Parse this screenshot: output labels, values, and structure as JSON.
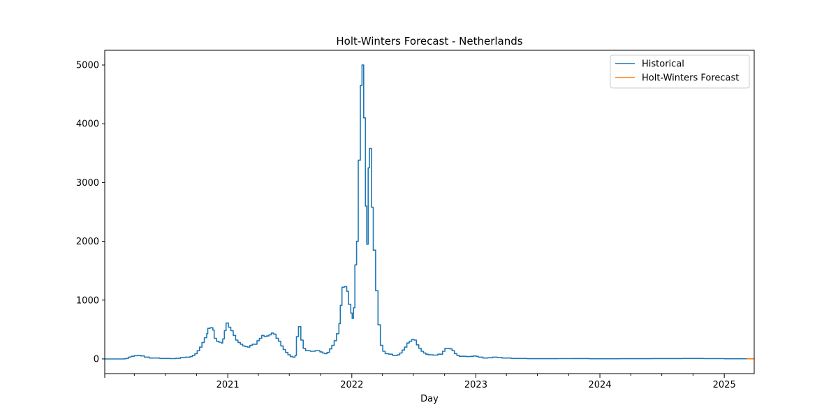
{
  "chart_data": {
    "type": "line",
    "title": "Holt-Winters Forecast - Netherlands",
    "xlabel": "Day",
    "ylabel": "",
    "xlim": [
      "2020-01-05",
      "2025-03-30"
    ],
    "ylim": [
      -250,
      5250
    ],
    "x_ticks": [
      {
        "value": "2021-01-01",
        "label": "2021"
      },
      {
        "value": "2022-01-01",
        "label": "2022"
      },
      {
        "value": "2023-01-01",
        "label": "2023"
      },
      {
        "value": "2024-01-01",
        "label": "2024"
      },
      {
        "value": "2025-01-01",
        "label": "2025"
      }
    ],
    "y_ticks": [
      0,
      1000,
      2000,
      3000,
      4000,
      5000
    ],
    "grid": false,
    "legend_position": "top-right",
    "step": true,
    "series": [
      {
        "name": "Historical",
        "color": "#1f77b4",
        "points": [
          [
            "2020-01-05",
            0
          ],
          [
            "2020-03-01",
            2
          ],
          [
            "2020-03-08",
            10
          ],
          [
            "2020-03-15",
            30
          ],
          [
            "2020-03-22",
            45
          ],
          [
            "2020-04-01",
            55
          ],
          [
            "2020-04-12",
            60
          ],
          [
            "2020-04-20",
            50
          ],
          [
            "2020-05-01",
            30
          ],
          [
            "2020-05-15",
            15
          ],
          [
            "2020-06-15",
            8
          ],
          [
            "2020-07-15",
            5
          ],
          [
            "2020-08-01",
            10
          ],
          [
            "2020-08-15",
            25
          ],
          [
            "2020-08-29",
            30
          ],
          [
            "2020-09-12",
            40
          ],
          [
            "2020-09-19",
            60
          ],
          [
            "2020-09-26",
            90
          ],
          [
            "2020-10-03",
            140
          ],
          [
            "2020-10-10",
            200
          ],
          [
            "2020-10-17",
            280
          ],
          [
            "2020-10-24",
            360
          ],
          [
            "2020-10-31",
            430
          ],
          [
            "2020-11-03",
            520
          ],
          [
            "2020-11-10",
            530
          ],
          [
            "2020-11-18",
            490
          ],
          [
            "2020-11-22",
            350
          ],
          [
            "2020-11-29",
            300
          ],
          [
            "2020-12-06",
            285
          ],
          [
            "2020-12-13",
            270
          ],
          [
            "2020-12-17",
            340
          ],
          [
            "2020-12-22",
            480
          ],
          [
            "2020-12-27",
            610
          ],
          [
            "2021-01-03",
            540
          ],
          [
            "2021-01-10",
            480
          ],
          [
            "2021-01-17",
            400
          ],
          [
            "2021-01-24",
            320
          ],
          [
            "2021-01-31",
            280
          ],
          [
            "2021-02-07",
            250
          ],
          [
            "2021-02-14",
            220
          ],
          [
            "2021-02-21",
            210
          ],
          [
            "2021-02-28",
            200
          ],
          [
            "2021-03-07",
            230
          ],
          [
            "2021-03-14",
            250
          ],
          [
            "2021-03-28",
            310
          ],
          [
            "2021-04-04",
            350
          ],
          [
            "2021-04-11",
            400
          ],
          [
            "2021-04-18",
            380
          ],
          [
            "2021-04-25",
            390
          ],
          [
            "2021-05-02",
            410
          ],
          [
            "2021-05-09",
            440
          ],
          [
            "2021-05-16",
            420
          ],
          [
            "2021-05-23",
            350
          ],
          [
            "2021-05-30",
            300
          ],
          [
            "2021-06-06",
            220
          ],
          [
            "2021-06-13",
            160
          ],
          [
            "2021-06-20",
            110
          ],
          [
            "2021-06-27",
            70
          ],
          [
            "2021-07-04",
            40
          ],
          [
            "2021-07-11",
            30
          ],
          [
            "2021-07-18",
            60
          ],
          [
            "2021-07-22",
            380
          ],
          [
            "2021-07-28",
            550
          ],
          [
            "2021-08-04",
            320
          ],
          [
            "2021-08-11",
            180
          ],
          [
            "2021-08-18",
            140
          ],
          [
            "2021-09-01",
            130
          ],
          [
            "2021-09-15",
            140
          ],
          [
            "2021-09-29",
            120
          ],
          [
            "2021-10-06",
            100
          ],
          [
            "2021-10-13",
            90
          ],
          [
            "2021-10-20",
            110
          ],
          [
            "2021-10-27",
            170
          ],
          [
            "2021-11-03",
            230
          ],
          [
            "2021-11-10",
            310
          ],
          [
            "2021-11-17",
            430
          ],
          [
            "2021-11-24",
            600
          ],
          [
            "2021-11-28",
            910
          ],
          [
            "2021-12-03",
            1220
          ],
          [
            "2021-12-10",
            1230
          ],
          [
            "2021-12-17",
            1150
          ],
          [
            "2021-12-22",
            930
          ],
          [
            "2021-12-29",
            780
          ],
          [
            "2022-01-02",
            690
          ],
          [
            "2022-01-06",
            870
          ],
          [
            "2022-01-10",
            1600
          ],
          [
            "2022-01-15",
            2000
          ],
          [
            "2022-01-20",
            3380
          ],
          [
            "2022-01-26",
            4650
          ],
          [
            "2022-01-31",
            5000
          ],
          [
            "2022-02-05",
            4100
          ],
          [
            "2022-02-10",
            2600
          ],
          [
            "2022-02-14",
            1950
          ],
          [
            "2022-02-18",
            3250
          ],
          [
            "2022-02-22",
            3580
          ],
          [
            "2022-02-28",
            2580
          ],
          [
            "2022-03-05",
            1850
          ],
          [
            "2022-03-12",
            1160
          ],
          [
            "2022-03-19",
            580
          ],
          [
            "2022-03-26",
            230
          ],
          [
            "2022-04-02",
            130
          ],
          [
            "2022-04-09",
            90
          ],
          [
            "2022-04-20",
            80
          ],
          [
            "2022-05-01",
            60
          ],
          [
            "2022-05-15",
            70
          ],
          [
            "2022-05-22",
            100
          ],
          [
            "2022-05-29",
            150
          ],
          [
            "2022-06-05",
            200
          ],
          [
            "2022-06-12",
            270
          ],
          [
            "2022-06-19",
            300
          ],
          [
            "2022-06-26",
            330
          ],
          [
            "2022-07-03",
            320
          ],
          [
            "2022-07-10",
            240
          ],
          [
            "2022-07-17",
            180
          ],
          [
            "2022-07-24",
            130
          ],
          [
            "2022-07-31",
            100
          ],
          [
            "2022-08-07",
            80
          ],
          [
            "2022-08-14",
            70
          ],
          [
            "2022-08-28",
            65
          ],
          [
            "2022-09-11",
            80
          ],
          [
            "2022-09-25",
            130
          ],
          [
            "2022-10-02",
            180
          ],
          [
            "2022-10-16",
            170
          ],
          [
            "2022-10-23",
            140
          ],
          [
            "2022-10-30",
            90
          ],
          [
            "2022-11-06",
            60
          ],
          [
            "2022-11-13",
            45
          ],
          [
            "2022-12-04",
            40
          ],
          [
            "2022-12-18",
            45
          ],
          [
            "2022-12-25",
            50
          ],
          [
            "2023-01-01",
            45
          ],
          [
            "2023-01-08",
            30
          ],
          [
            "2023-01-22",
            15
          ],
          [
            "2023-02-05",
            20
          ],
          [
            "2023-02-19",
            30
          ],
          [
            "2023-03-05",
            25
          ],
          [
            "2023-03-19",
            15
          ],
          [
            "2023-04-15",
            8
          ],
          [
            "2023-06-01",
            4
          ],
          [
            "2023-09-01",
            5
          ],
          [
            "2023-10-15",
            6
          ],
          [
            "2023-12-01",
            3
          ],
          [
            "2024-03-01",
            4
          ],
          [
            "2024-06-01",
            6
          ],
          [
            "2024-09-01",
            8
          ],
          [
            "2024-11-01",
            5
          ],
          [
            "2025-01-01",
            3
          ],
          [
            "2025-03-08",
            2
          ]
        ]
      },
      {
        "name": "Holt-Winters Forecast",
        "color": "#ff7f0e",
        "points": [
          [
            "2025-03-08",
            2
          ],
          [
            "2025-03-30",
            2
          ]
        ]
      }
    ]
  }
}
